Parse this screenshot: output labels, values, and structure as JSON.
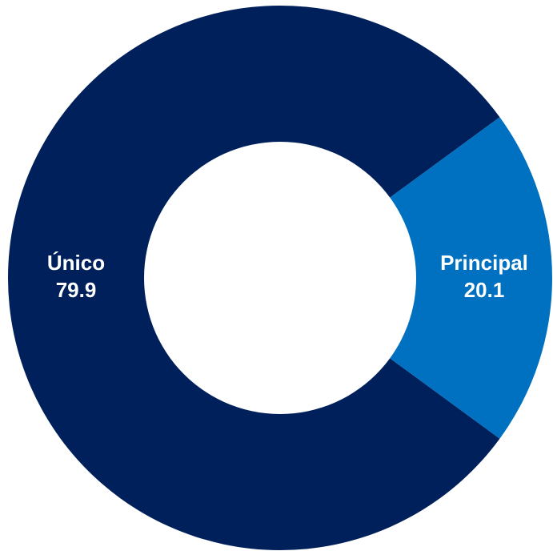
{
  "chart_data": {
    "type": "donut",
    "categories": [
      "Único",
      "Principal"
    ],
    "values": [
      79.9,
      20.1
    ],
    "colors": [
      "#00205b",
      "#0070c0"
    ]
  }
}
